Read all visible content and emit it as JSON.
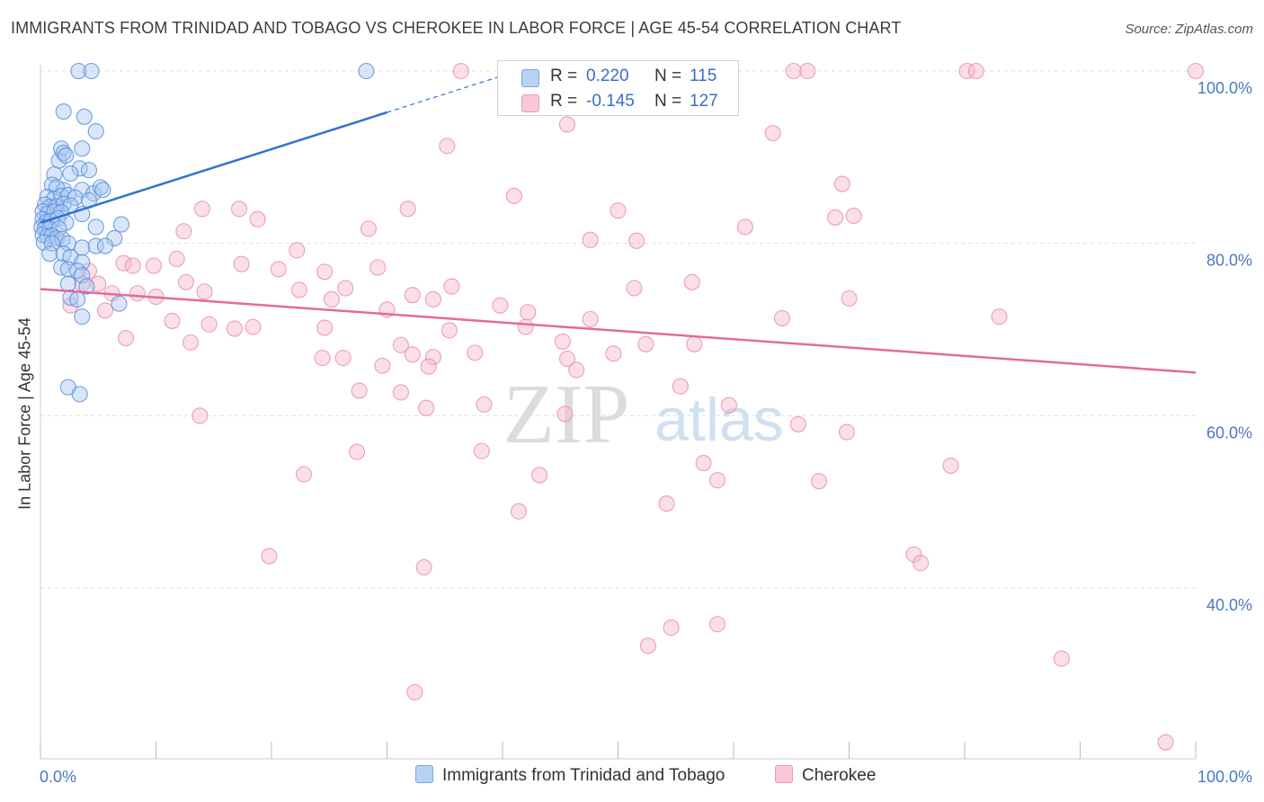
{
  "title": "IMMIGRANTS FROM TRINIDAD AND TOBAGO VS CHEROKEE IN LABOR FORCE | AGE 45-54 CORRELATION CHART",
  "source": "Source: ZipAtlas.com",
  "watermark": {
    "zip": "ZIP",
    "atlas": "atlas"
  },
  "legend_top": {
    "rows": [
      {
        "r_label": "R =",
        "r_value": "0.220",
        "n_label": "N =",
        "n_value": "115"
      },
      {
        "r_label": "R =",
        "r_value": "-0.145",
        "n_label": "N =",
        "n_value": "127"
      }
    ]
  },
  "legend_bottom": {
    "series1": "Immigrants from Trinidad and Tobago",
    "series2": "Cherokee"
  },
  "colors": {
    "blue_fill": "#a8c8f0",
    "blue_stroke": "#5a8ee0",
    "blue_line": "#2f74d0",
    "pink_fill": "#f6b8cc",
    "pink_stroke": "#ea8fae",
    "pink_line": "#e46a96",
    "grid": "#dddddd",
    "axis_text": "#4a78c8"
  },
  "chart_data": {
    "type": "scatter",
    "title": "IMMIGRANTS FROM TRINIDAD AND TOBAGO VS CHEROKEE IN LABOR FORCE | AGE 45-54 CORRELATION CHART",
    "xlabel": "",
    "ylabel": "In Labor Force | Age 45-54",
    "x_tick_labels": [
      "0.0%",
      "100.0%"
    ],
    "y_tick_labels": [
      "100.0%",
      "80.0%",
      "60.0%",
      "40.0%"
    ],
    "y_ticks": [
      100,
      80,
      60,
      40
    ],
    "xlim": [
      0,
      100
    ],
    "ylim": [
      20,
      102
    ],
    "grid": true,
    "series": [
      {
        "name": "Immigrants from Trinidad and Tobago",
        "color": "blue",
        "r": 0.22,
        "n": 115,
        "trend": {
          "x0": 0,
          "y0": 82.4,
          "x1": 30,
          "y1": 95.2,
          "dashed_to_x": 41
        },
        "points": [
          [
            3.3,
            100
          ],
          [
            4.4,
            100
          ],
          [
            28.2,
            100
          ],
          [
            2,
            95.3
          ],
          [
            3.8,
            94.7
          ],
          [
            4.8,
            93
          ],
          [
            1.8,
            91
          ],
          [
            3.6,
            91
          ],
          [
            1.6,
            89.6
          ],
          [
            2,
            90.5
          ],
          [
            2.2,
            90.2
          ],
          [
            3.4,
            88.7
          ],
          [
            4.2,
            88.5
          ],
          [
            1.2,
            88
          ],
          [
            2.6,
            88.1
          ],
          [
            1,
            86.8
          ],
          [
            2,
            86.2
          ],
          [
            1.4,
            86.5
          ],
          [
            3.6,
            86.2
          ],
          [
            4.6,
            85.8
          ],
          [
            5.2,
            86.5
          ],
          [
            5.4,
            86.2
          ],
          [
            0.6,
            85.4
          ],
          [
            1.2,
            85.2
          ],
          [
            1.8,
            85.5
          ],
          [
            2.4,
            85.6
          ],
          [
            3,
            85.3
          ],
          [
            4.2,
            85
          ],
          [
            0.4,
            84.5
          ],
          [
            0.8,
            84.2
          ],
          [
            1.4,
            84.3
          ],
          [
            2,
            84.6
          ],
          [
            2.6,
            84.4
          ],
          [
            0.2,
            83.7
          ],
          [
            0.6,
            83.4
          ],
          [
            1.2,
            83.7
          ],
          [
            1.8,
            83.6
          ],
          [
            3.6,
            83.4
          ],
          [
            0.2,
            82.8
          ],
          [
            0.5,
            82.5
          ],
          [
            0.9,
            82.6
          ],
          [
            1.5,
            82.9
          ],
          [
            2.2,
            82.4
          ],
          [
            7,
            82.2
          ],
          [
            0.1,
            81.9
          ],
          [
            0.4,
            81.8
          ],
          [
            0.8,
            81.7
          ],
          [
            1.6,
            81.7
          ],
          [
            4.8,
            81.9
          ],
          [
            0.2,
            81
          ],
          [
            0.6,
            80.8
          ],
          [
            1,
            80.9
          ],
          [
            1.4,
            80.6
          ],
          [
            1.9,
            80.5
          ],
          [
            6.4,
            80.6
          ],
          [
            0.3,
            80.1
          ],
          [
            1,
            80
          ],
          [
            2.4,
            80
          ],
          [
            3.6,
            79.5
          ],
          [
            4.8,
            79.7
          ],
          [
            5.6,
            79.7
          ],
          [
            0.8,
            78.8
          ],
          [
            2,
            78.8
          ],
          [
            2.6,
            78.4
          ],
          [
            3.6,
            77.8
          ],
          [
            1.8,
            77.2
          ],
          [
            2.4,
            77
          ],
          [
            3.2,
            76.8
          ],
          [
            3.6,
            76.3
          ],
          [
            2.4,
            75.3
          ],
          [
            4,
            75
          ],
          [
            2.6,
            73.7
          ],
          [
            3.2,
            73.5
          ],
          [
            6.8,
            73
          ],
          [
            3.6,
            71.5
          ],
          [
            2.4,
            63.3
          ],
          [
            3.4,
            62.5
          ]
        ]
      },
      {
        "name": "Cherokee",
        "color": "pink",
        "r": -0.145,
        "n": 127,
        "trend": {
          "x0": 0,
          "y0": 74.7,
          "x1": 100,
          "y1": 65.0
        },
        "points": [
          [
            36.4,
            100
          ],
          [
            65.2,
            100
          ],
          [
            66.4,
            100
          ],
          [
            80.2,
            100
          ],
          [
            81,
            100
          ],
          [
            100,
            100
          ],
          [
            45.6,
            93.8
          ],
          [
            35.2,
            91.3
          ],
          [
            63.4,
            92.8
          ],
          [
            69.4,
            86.9
          ],
          [
            41,
            85.5
          ],
          [
            14,
            84
          ],
          [
            17.2,
            84
          ],
          [
            31.8,
            84
          ],
          [
            50,
            83.8
          ],
          [
            18.8,
            82.8
          ],
          [
            68.8,
            83
          ],
          [
            70.4,
            83.2
          ],
          [
            12.4,
            81.4
          ],
          [
            28.4,
            81.7
          ],
          [
            61,
            81.9
          ],
          [
            47.6,
            80.4
          ],
          [
            51.6,
            80.3
          ],
          [
            22.2,
            79.2
          ],
          [
            7.2,
            77.7
          ],
          [
            8,
            77.4
          ],
          [
            9.8,
            77.4
          ],
          [
            11.8,
            78.2
          ],
          [
            17.4,
            77.6
          ],
          [
            20.6,
            77
          ],
          [
            24.6,
            76.7
          ],
          [
            29.2,
            77.2
          ],
          [
            4.2,
            76.8
          ],
          [
            3.6,
            75.3
          ],
          [
            5,
            75.3
          ],
          [
            12.6,
            75.5
          ],
          [
            22.4,
            74.6
          ],
          [
            14.2,
            74.4
          ],
          [
            26.4,
            74.8
          ],
          [
            35.6,
            75
          ],
          [
            51.4,
            74.8
          ],
          [
            56.4,
            75.5
          ],
          [
            6.2,
            74.2
          ],
          [
            8.4,
            74.2
          ],
          [
            10,
            73.8
          ],
          [
            25.2,
            73.5
          ],
          [
            32.2,
            74
          ],
          [
            34,
            73.5
          ],
          [
            70,
            73.6
          ],
          [
            2.6,
            72.8
          ],
          [
            5.6,
            72.2
          ],
          [
            30,
            72.3
          ],
          [
            39.8,
            72.8
          ],
          [
            42.2,
            72
          ],
          [
            11.4,
            71
          ],
          [
            14.6,
            70.6
          ],
          [
            16.8,
            70.1
          ],
          [
            18.4,
            70.3
          ],
          [
            24.6,
            70.2
          ],
          [
            42,
            70.3
          ],
          [
            47.6,
            71.2
          ],
          [
            64.2,
            71.3
          ],
          [
            83,
            71.5
          ],
          [
            7.4,
            69
          ],
          [
            13,
            68.5
          ],
          [
            31.2,
            68.2
          ],
          [
            35.4,
            69.9
          ],
          [
            45.2,
            68.6
          ],
          [
            52.4,
            68.3
          ],
          [
            56.6,
            68.3
          ],
          [
            24.4,
            66.7
          ],
          [
            26.2,
            66.7
          ],
          [
            34,
            66.8
          ],
          [
            32.2,
            67.1
          ],
          [
            37.6,
            67.3
          ],
          [
            45.6,
            66.6
          ],
          [
            49.6,
            67.2
          ],
          [
            29.6,
            65.8
          ],
          [
            33.6,
            65.7
          ],
          [
            46.4,
            65.3
          ],
          [
            55.4,
            63.4
          ],
          [
            27.6,
            62.9
          ],
          [
            31.2,
            62.7
          ],
          [
            13.8,
            60
          ],
          [
            33.4,
            60.9
          ],
          [
            38.4,
            61.3
          ],
          [
            45.4,
            60.2
          ],
          [
            59.6,
            61.2
          ],
          [
            65.6,
            59
          ],
          [
            69.8,
            58.1
          ],
          [
            27.4,
            55.8
          ],
          [
            38.2,
            55.9
          ],
          [
            57.4,
            54.5
          ],
          [
            78.8,
            54.2
          ],
          [
            22.8,
            53.2
          ],
          [
            43.2,
            53.1
          ],
          [
            58.6,
            52.5
          ],
          [
            67.4,
            52.4
          ],
          [
            54.2,
            49.8
          ],
          [
            41.4,
            48.9
          ],
          [
            19.8,
            43.7
          ],
          [
            33.2,
            42.4
          ],
          [
            75.6,
            43.9
          ],
          [
            76.2,
            42.9
          ],
          [
            58.6,
            35.8
          ],
          [
            54.6,
            35.4
          ],
          [
            52.6,
            33.3
          ],
          [
            88.4,
            31.8
          ],
          [
            32.4,
            27.9
          ],
          [
            97.4,
            22.1
          ]
        ]
      }
    ]
  }
}
